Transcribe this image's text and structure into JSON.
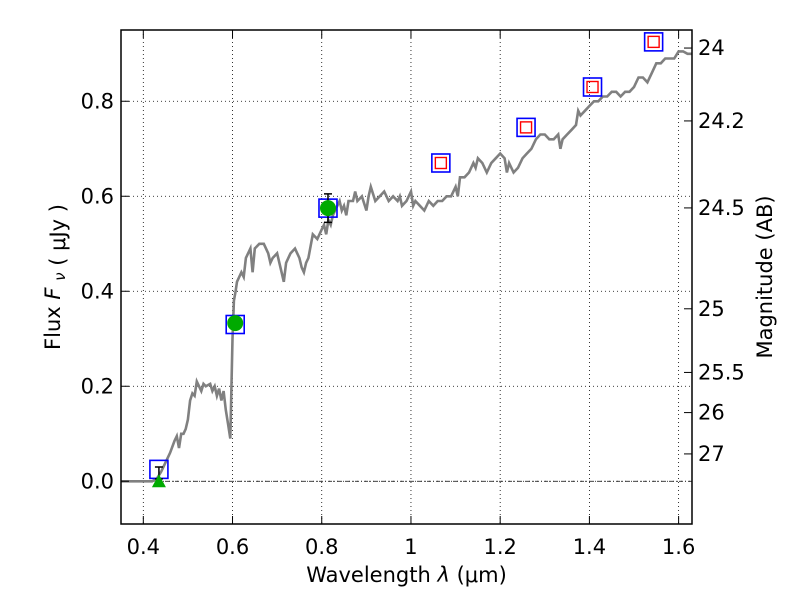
{
  "chart_data": {
    "type": "scatter",
    "title": "",
    "xlabel_main": "Wavelength",
    "xlabel_symbol": "λ",
    "xlabel_unit": "(μm)",
    "ylabel_main": "Flux",
    "ylabel_symbol": "F",
    "ylabel_subscript": "ν",
    "ylabel_unit": "( μJy )",
    "y2label": "Magnitude (AB)",
    "xlim": [
      0.35,
      1.63
    ],
    "ylim": [
      -0.09,
      0.95
    ],
    "grid": true,
    "x_ticks": [
      {
        "value": 0.4,
        "label": "0.4"
      },
      {
        "value": 0.6,
        "label": "0.6"
      },
      {
        "value": 0.8,
        "label": "0.8"
      },
      {
        "value": 1.0,
        "label": "1"
      },
      {
        "value": 1.2,
        "label": "1.2"
      },
      {
        "value": 1.4,
        "label": "1.4"
      },
      {
        "value": 1.6,
        "label": "1.6"
      }
    ],
    "y_ticks": [
      {
        "value": 0.0,
        "label": "0.0"
      },
      {
        "value": 0.2,
        "label": "0.2"
      },
      {
        "value": 0.4,
        "label": "0.4"
      },
      {
        "value": 0.6,
        "label": "0.6"
      },
      {
        "value": 0.8,
        "label": "0.8"
      }
    ],
    "magnitude_ticks": [
      {
        "value": 24.0,
        "label": "24"
      },
      {
        "value": 24.2,
        "label": "24.2"
      },
      {
        "value": 24.5,
        "label": "24.5"
      },
      {
        "value": 25.0,
        "label": "25"
      },
      {
        "value": 25.5,
        "label": "25.5"
      },
      {
        "value": 26.0,
        "label": "26"
      },
      {
        "value": 27.0,
        "label": "27"
      }
    ],
    "colors": {
      "template": "#808080",
      "model_box": "#0000ff",
      "upper_limit_box": "#ff0000",
      "detection": "#00aa00",
      "errorbar": "#000000"
    },
    "template_spectrum": [
      [
        0.35,
        0.0
      ],
      [
        0.4,
        0.0
      ],
      [
        0.42,
        0.0
      ],
      [
        0.43,
        0.005
      ],
      [
        0.44,
        0.02
      ],
      [
        0.45,
        0.04
      ],
      [
        0.46,
        0.06
      ],
      [
        0.47,
        0.085
      ],
      [
        0.475,
        0.095
      ],
      [
        0.48,
        0.07
      ],
      [
        0.485,
        0.1
      ],
      [
        0.49,
        0.1
      ],
      [
        0.495,
        0.11
      ],
      [
        0.5,
        0.13
      ],
      [
        0.505,
        0.17
      ],
      [
        0.51,
        0.185
      ],
      [
        0.515,
        0.18
      ],
      [
        0.52,
        0.21
      ],
      [
        0.53,
        0.19
      ],
      [
        0.535,
        0.205
      ],
      [
        0.54,
        0.2
      ],
      [
        0.55,
        0.205
      ],
      [
        0.555,
        0.19
      ],
      [
        0.56,
        0.2
      ],
      [
        0.565,
        0.18
      ],
      [
        0.57,
        0.195
      ],
      [
        0.575,
        0.17
      ],
      [
        0.58,
        0.19
      ],
      [
        0.585,
        0.15
      ],
      [
        0.59,
        0.12
      ],
      [
        0.595,
        0.09
      ],
      [
        0.6,
        0.3
      ],
      [
        0.603,
        0.38
      ],
      [
        0.607,
        0.4
      ],
      [
        0.61,
        0.42
      ],
      [
        0.615,
        0.43
      ],
      [
        0.62,
        0.44
      ],
      [
        0.625,
        0.43
      ],
      [
        0.63,
        0.47
      ],
      [
        0.64,
        0.49
      ],
      [
        0.645,
        0.44
      ],
      [
        0.65,
        0.49
      ],
      [
        0.66,
        0.5
      ],
      [
        0.67,
        0.5
      ],
      [
        0.68,
        0.48
      ],
      [
        0.685,
        0.46
      ],
      [
        0.69,
        0.47
      ],
      [
        0.7,
        0.48
      ],
      [
        0.71,
        0.44
      ],
      [
        0.715,
        0.42
      ],
      [
        0.72,
        0.46
      ],
      [
        0.73,
        0.48
      ],
      [
        0.74,
        0.49
      ],
      [
        0.745,
        0.48
      ],
      [
        0.75,
        0.47
      ],
      [
        0.755,
        0.45
      ],
      [
        0.76,
        0.44
      ],
      [
        0.765,
        0.46
      ],
      [
        0.77,
        0.47
      ],
      [
        0.78,
        0.52
      ],
      [
        0.79,
        0.51
      ],
      [
        0.8,
        0.53
      ],
      [
        0.805,
        0.54
      ],
      [
        0.81,
        0.52
      ],
      [
        0.815,
        0.55
      ],
      [
        0.82,
        0.54
      ],
      [
        0.825,
        0.56
      ],
      [
        0.83,
        0.57
      ],
      [
        0.84,
        0.59
      ],
      [
        0.845,
        0.57
      ],
      [
        0.85,
        0.58
      ],
      [
        0.855,
        0.56
      ],
      [
        0.86,
        0.59
      ],
      [
        0.87,
        0.59
      ],
      [
        0.875,
        0.61
      ],
      [
        0.88,
        0.59
      ],
      [
        0.89,
        0.6
      ],
      [
        0.9,
        0.57
      ],
      [
        0.905,
        0.6
      ],
      [
        0.91,
        0.62
      ],
      [
        0.92,
        0.59
      ],
      [
        0.93,
        0.6
      ],
      [
        0.94,
        0.61
      ],
      [
        0.95,
        0.59
      ],
      [
        0.96,
        0.6
      ],
      [
        0.97,
        0.59
      ],
      [
        0.975,
        0.6
      ],
      [
        0.98,
        0.58
      ],
      [
        0.99,
        0.59
      ],
      [
        1.0,
        0.61
      ],
      [
        1.005,
        0.58
      ],
      [
        1.01,
        0.59
      ],
      [
        1.02,
        0.58
      ],
      [
        1.03,
        0.57
      ],
      [
        1.04,
        0.59
      ],
      [
        1.05,
        0.58
      ],
      [
        1.06,
        0.59
      ],
      [
        1.07,
        0.59
      ],
      [
        1.08,
        0.6
      ],
      [
        1.09,
        0.6
      ],
      [
        1.1,
        0.62
      ],
      [
        1.105,
        0.6
      ],
      [
        1.11,
        0.64
      ],
      [
        1.12,
        0.64
      ],
      [
        1.13,
        0.65
      ],
      [
        1.14,
        0.67
      ],
      [
        1.145,
        0.66
      ],
      [
        1.15,
        0.68
      ],
      [
        1.16,
        0.67
      ],
      [
        1.17,
        0.65
      ],
      [
        1.18,
        0.67
      ],
      [
        1.19,
        0.68
      ],
      [
        1.2,
        0.69
      ],
      [
        1.21,
        0.68
      ],
      [
        1.215,
        0.65
      ],
      [
        1.22,
        0.67
      ],
      [
        1.23,
        0.65
      ],
      [
        1.24,
        0.66
      ],
      [
        1.25,
        0.68
      ],
      [
        1.26,
        0.69
      ],
      [
        1.27,
        0.7
      ],
      [
        1.28,
        0.72
      ],
      [
        1.29,
        0.73
      ],
      [
        1.3,
        0.73
      ],
      [
        1.31,
        0.72
      ],
      [
        1.32,
        0.72
      ],
      [
        1.33,
        0.73
      ],
      [
        1.335,
        0.7
      ],
      [
        1.34,
        0.72
      ],
      [
        1.35,
        0.73
      ],
      [
        1.36,
        0.74
      ],
      [
        1.37,
        0.75
      ],
      [
        1.375,
        0.78
      ],
      [
        1.38,
        0.77
      ],
      [
        1.39,
        0.78
      ],
      [
        1.4,
        0.79
      ],
      [
        1.41,
        0.8
      ],
      [
        1.42,
        0.8
      ],
      [
        1.43,
        0.81
      ],
      [
        1.44,
        0.81
      ],
      [
        1.45,
        0.82
      ],
      [
        1.46,
        0.82
      ],
      [
        1.47,
        0.81
      ],
      [
        1.48,
        0.82
      ],
      [
        1.49,
        0.82
      ],
      [
        1.5,
        0.83
      ],
      [
        1.51,
        0.85
      ],
      [
        1.52,
        0.85
      ],
      [
        1.53,
        0.84
      ],
      [
        1.54,
        0.86
      ],
      [
        1.55,
        0.88
      ],
      [
        1.56,
        0.88
      ],
      [
        1.57,
        0.89
      ],
      [
        1.58,
        0.89
      ],
      [
        1.59,
        0.89
      ],
      [
        1.6,
        0.905
      ],
      [
        1.61,
        0.905
      ],
      [
        1.62,
        0.9
      ],
      [
        1.63,
        0.9
      ]
    ],
    "model_photometry": [
      {
        "x": 0.435,
        "y": 0.025,
        "upper_limit": false
      },
      {
        "x": 0.606,
        "y": 0.33,
        "upper_limit": false
      },
      {
        "x": 0.814,
        "y": 0.575,
        "upper_limit": false
      },
      {
        "x": 1.067,
        "y": 0.67,
        "upper_limit": true
      },
      {
        "x": 1.258,
        "y": 0.745,
        "upper_limit": true
      },
      {
        "x": 1.407,
        "y": 0.83,
        "upper_limit": true
      },
      {
        "x": 1.544,
        "y": 0.925,
        "upper_limit": true
      }
    ],
    "detections": [
      {
        "x": 0.606,
        "y": 0.333,
        "yerr": 0.012
      },
      {
        "x": 0.814,
        "y": 0.575,
        "yerr": 0.03
      }
    ],
    "nondetections": [
      {
        "x": 0.435,
        "y": 0.0,
        "yerr": 0.015
      }
    ]
  }
}
